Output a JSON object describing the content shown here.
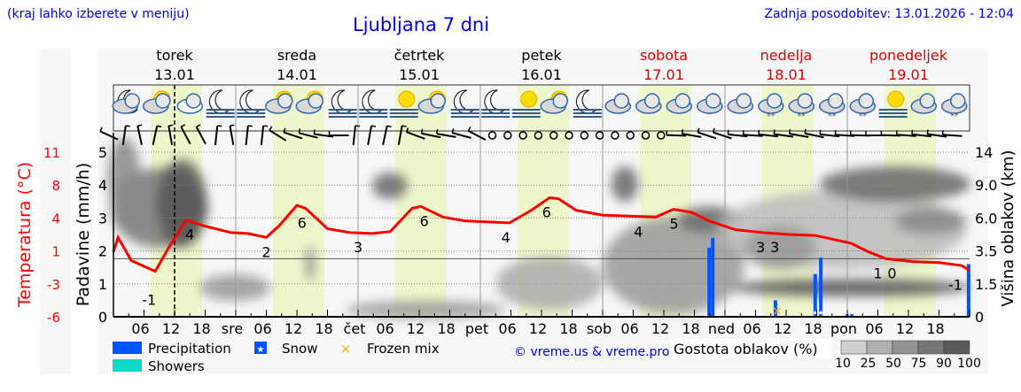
{
  "header": {
    "location_hint": "(kraj lahko izberete v meniju)",
    "title": "Ljubljana 7 dni",
    "updated": "Zadnja posodobitev: 13.01.2026 - 12:04"
  },
  "colors": {
    "header_text": "#0000ee",
    "temperature": "#ff0000",
    "weekend": "#dd0000",
    "precipitation": "#0055ff",
    "showers": "#10d8c8",
    "frozen_mix": "#ffaa00",
    "daylight": "#eef6cc"
  },
  "days": [
    {
      "name": "torek",
      "date": "13.01",
      "weekend": false
    },
    {
      "name": "sreda",
      "date": "14.01",
      "weekend": false
    },
    {
      "name": "četrtek",
      "date": "15.01",
      "weekend": false
    },
    {
      "name": "petek",
      "date": "16.01",
      "weekend": false
    },
    {
      "name": "sobota",
      "date": "17.01",
      "weekend": true
    },
    {
      "name": "nedelja",
      "date": "18.01",
      "weekend": true
    },
    {
      "name": "ponedeljek",
      "date": "19.01",
      "weekend": true
    }
  ],
  "weather_icons": [
    "moon-cloud",
    "sun-cloud",
    "cloud",
    "moon-fog",
    "moon-fog",
    "sun-cloud",
    "sun-cloud",
    "moon-fog",
    "moon-fog",
    "sun-fog",
    "sun-cloud",
    "moon-fog",
    "moon-fog",
    "sun-fog",
    "sun-cloud",
    "moon-fog",
    "cloud",
    "cloud",
    "cloud",
    "cloud-rain",
    "cloud",
    "cloud-snow",
    "cloud-snow",
    "cloud-snow",
    "cloud-snow",
    "sun-fog",
    "cloud",
    "cloud-snow"
  ],
  "wind_barbs": [
    -65,
    8,
    -12,
    12,
    -10,
    -28,
    -28,
    6,
    -10,
    6,
    6,
    -58,
    -72,
    -76,
    -82,
    -90,
    6,
    10,
    12,
    10,
    -70,
    -78,
    -80,
    -75,
    -62,
    "calm",
    "calm",
    "calm",
    "calm",
    "calm",
    "calm",
    "calm",
    "calm",
    "calm",
    "calm",
    "calm",
    "calm",
    -88,
    -80,
    -72,
    -72,
    -84,
    -86,
    -84,
    -82,
    -80,
    -78,
    -84,
    -86,
    -88,
    -90,
    -88,
    -86,
    -84,
    -82,
    -86
  ],
  "chart_data": {
    "type": "line",
    "title": "",
    "x_tick_labels": [
      "06",
      "12",
      "18",
      "sre",
      "06",
      "12",
      "18",
      "čet",
      "06",
      "12",
      "18",
      "pet",
      "06",
      "12",
      "18",
      "sob",
      "06",
      "12",
      "18",
      "ned",
      "06",
      "12",
      "18",
      "pon",
      "06",
      "12",
      "18"
    ],
    "current_time_hour": 12,
    "left_axis_1": {
      "label": "Temperatura (°C)",
      "ticks": [
        "11",
        "8",
        "4",
        "1",
        "-3",
        "-6"
      ],
      "range": [
        -6,
        11
      ]
    },
    "left_axis_2": {
      "label": "Padavine (mm/h)",
      "ticks": [
        "5",
        "4",
        "3",
        "2",
        "1",
        "0"
      ],
      "range": [
        0,
        5
      ]
    },
    "right_axis": {
      "label": "Višina oblakov (km)",
      "ticks": [
        "14",
        "9.0",
        "6.0",
        "3.5",
        "1.5",
        "0"
      ]
    },
    "grid": true,
    "temperature": {
      "unit": "°C",
      "points": [
        [
          0,
          0.7
        ],
        [
          0.9,
          2.2
        ],
        [
          3.5,
          -0.2
        ],
        [
          8.2,
          -1.3
        ],
        [
          10.8,
          1.1
        ],
        [
          14.3,
          4.0
        ],
        [
          17.7,
          3.4
        ],
        [
          23,
          2.7
        ],
        [
          26.4,
          2.6
        ],
        [
          30,
          2.2
        ],
        [
          32.5,
          3.4
        ],
        [
          36,
          5.5
        ],
        [
          37.7,
          5.2
        ],
        [
          42,
          3.1
        ],
        [
          46.4,
          2.7
        ],
        [
          50.8,
          2.6
        ],
        [
          54.3,
          2.8
        ],
        [
          58.6,
          5.2
        ],
        [
          60.3,
          5.4
        ],
        [
          64.7,
          4.3
        ],
        [
          69,
          3.9
        ],
        [
          77.7,
          3.7
        ],
        [
          82,
          5.0
        ],
        [
          85.6,
          6.3
        ],
        [
          87.3,
          6.2
        ],
        [
          90.8,
          5.0
        ],
        [
          96,
          4.5
        ],
        [
          106.4,
          4.3
        ],
        [
          109.9,
          5.1
        ],
        [
          113.4,
          4.8
        ],
        [
          116.9,
          3.9
        ],
        [
          122,
          3.0
        ],
        [
          127.3,
          2.7
        ],
        [
          132.5,
          2.5
        ],
        [
          137.7,
          2.4
        ],
        [
          141.2,
          2.0
        ],
        [
          144.7,
          1.6
        ],
        [
          148.2,
          0.7
        ],
        [
          151.6,
          0.0
        ],
        [
          156.9,
          -0.3
        ],
        [
          162,
          -0.4
        ],
        [
          166.4,
          -0.7
        ],
        [
          168,
          -1.2
        ]
      ],
      "labels": [
        [
          7,
          "-1"
        ],
        [
          15,
          "4"
        ],
        [
          30,
          "2"
        ],
        [
          37,
          "6"
        ],
        [
          48,
          "3"
        ],
        [
          61,
          "6"
        ],
        [
          77,
          "4"
        ],
        [
          85,
          "6"
        ],
        [
          103,
          "4"
        ],
        [
          110,
          "5"
        ],
        [
          127,
          "3"
        ],
        [
          128.2,
          "3"
        ],
        [
          150,
          "1"
        ],
        [
          151.2,
          "0"
        ],
        [
          167.5,
          "-1"
        ]
      ]
    },
    "precipitation": {
      "unit": "mm/h",
      "bars": [
        [
          116.9,
          2.1,
          "rain"
        ],
        [
          117.6,
          2.4,
          "rain"
        ],
        [
          129.9,
          0.5,
          "frozen"
        ],
        [
          137.7,
          1.3,
          "snow"
        ],
        [
          138.8,
          1.8,
          "snow"
        ],
        [
          144,
          0.1,
          "snow"
        ],
        [
          144.9,
          0.1,
          "snow"
        ],
        [
          167.8,
          1.6,
          "rain"
        ]
      ]
    },
    "legend": {
      "precipitation": "Precipitation",
      "snow": "Snow",
      "frozen_mix": "Frozen mix",
      "showers": "Showers",
      "cloud_density_title": "Gostota oblakov (%)",
      "cloud_density_ticks": [
        "10",
        "25",
        "50",
        "75",
        "90",
        "100"
      ],
      "cloud_density_colors": [
        "#cfcfcf",
        "#b0b0b0",
        "#939393",
        "#767676",
        "#595959"
      ]
    }
  },
  "copyright": "© vreme.us & vreme.pro"
}
